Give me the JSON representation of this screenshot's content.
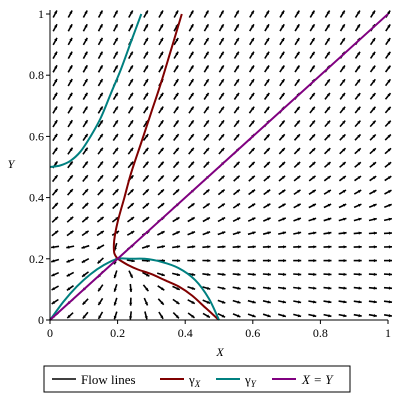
{
  "chart_data": {
    "type": "line",
    "xlabel": "X",
    "ylabel": "Y",
    "xlim": [
      0,
      1
    ],
    "ylim": [
      0,
      1
    ],
    "x_ticks": [
      "0",
      "0.2",
      "0.4",
      "0.6",
      "0.8",
      "1"
    ],
    "y_ticks": [
      "0",
      "0.2",
      "0.4",
      "0.6",
      "0.8",
      "1"
    ],
    "grid": false,
    "vector_field": {
      "type": "direction-field",
      "color": "#000000",
      "fixed_point": [
        0.2,
        0.2
      ]
    },
    "series": [
      {
        "name": "γ_X",
        "color": "#800000",
        "x": [
          0.2,
          0.23,
          0.26,
          0.3,
          0.34,
          0.38,
          0.42,
          0.46,
          0.5
        ],
        "y": [
          0.2,
          0.18,
          0.165,
          0.15,
          0.13,
          0.11,
          0.08,
          0.04,
          0.0
        ]
      },
      {
        "name": "γ_X",
        "color": "#800000",
        "x": [
          0.2,
          0.19,
          0.19,
          0.2,
          0.22,
          0.24,
          0.27,
          0.3,
          0.33,
          0.36,
          0.39
        ],
        "y": [
          0.2,
          0.22,
          0.26,
          0.32,
          0.4,
          0.48,
          0.58,
          0.68,
          0.78,
          0.89,
          1.0
        ]
      },
      {
        "name": "γ_Y",
        "color": "#008080",
        "x": [
          0.0,
          0.04,
          0.08,
          0.12,
          0.16,
          0.2,
          0.24,
          0.28,
          0.33,
          0.38,
          0.43,
          0.47,
          0.5
        ],
        "y": [
          0.0,
          0.06,
          0.11,
          0.15,
          0.18,
          0.2,
          0.2,
          0.2,
          0.19,
          0.17,
          0.13,
          0.07,
          0.0
        ]
      },
      {
        "name": "γ_Y",
        "color": "#008080",
        "x": [
          0.0,
          0.03,
          0.06,
          0.09,
          0.12,
          0.15,
          0.18,
          0.21,
          0.24,
          0.27
        ],
        "y": [
          0.5,
          0.505,
          0.52,
          0.55,
          0.6,
          0.66,
          0.74,
          0.82,
          0.91,
          1.0
        ]
      },
      {
        "name": "X = Y",
        "color": "#800080",
        "x": [
          0,
          1
        ],
        "y": [
          0,
          1
        ]
      }
    ],
    "legend": {
      "placement": "bottom",
      "entries": [
        {
          "name": "Flow lines",
          "color": "#000000"
        },
        {
          "name": "γ",
          "sub": "X",
          "color": "#800000"
        },
        {
          "name": "γ",
          "sub": "Y",
          "color": "#008080"
        },
        {
          "name": "X = Y",
          "color": "#800080"
        }
      ]
    }
  }
}
